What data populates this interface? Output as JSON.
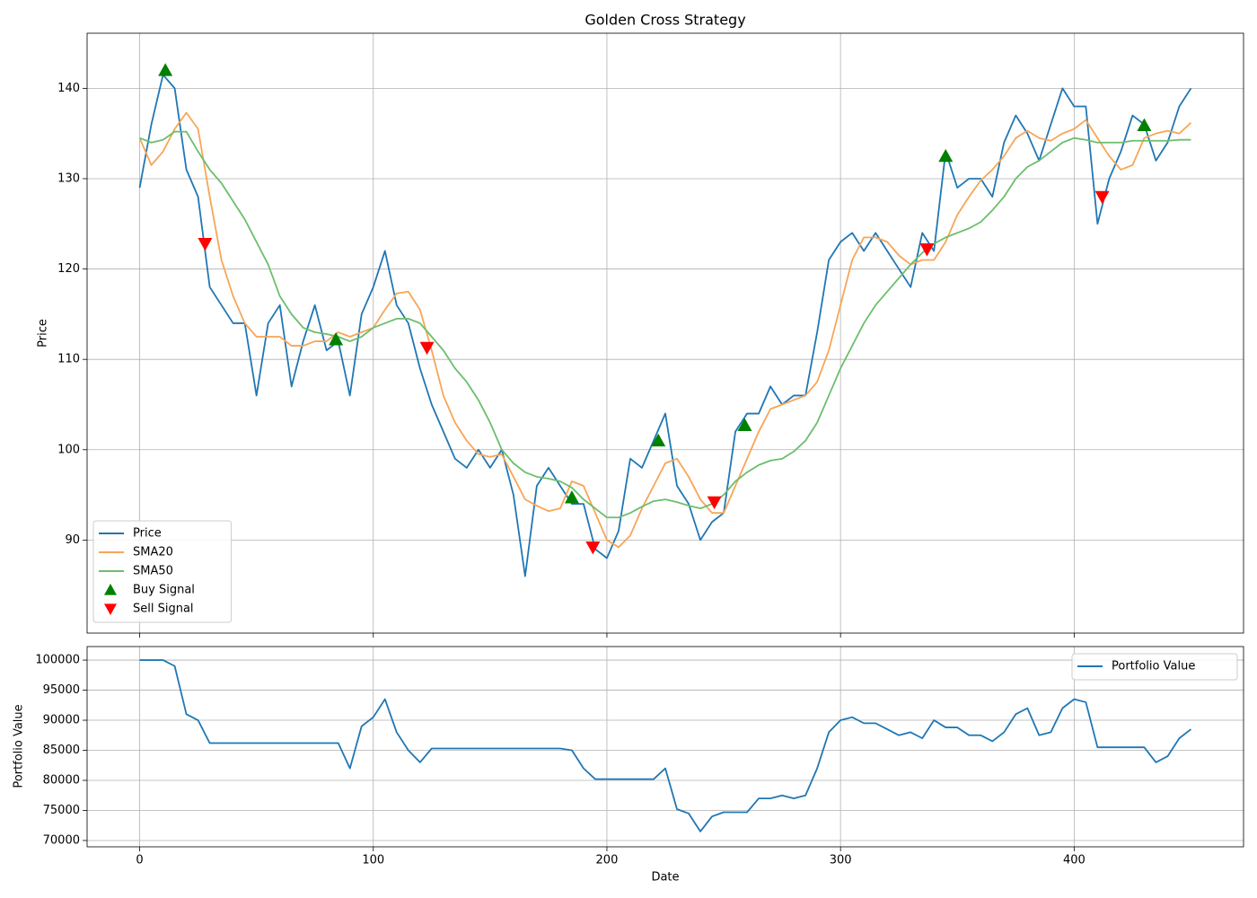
{
  "chart_data": [
    {
      "type": "line",
      "title": "Golden Cross Strategy",
      "ylabel": "Price",
      "xlim": [
        -22.5,
        472.5
      ],
      "ylim": [
        79.7,
        146.1
      ],
      "xticks": [
        0,
        100,
        200,
        300,
        400
      ],
      "yticks": [
        90,
        100,
        110,
        120,
        130,
        140
      ],
      "grid": true,
      "legend": "lower left",
      "x": [
        0,
        5,
        10,
        15,
        20,
        25,
        30,
        35,
        40,
        45,
        50,
        55,
        60,
        65,
        70,
        75,
        80,
        85,
        90,
        95,
        100,
        105,
        110,
        115,
        120,
        125,
        130,
        135,
        140,
        145,
        150,
        155,
        160,
        165,
        170,
        175,
        180,
        185,
        190,
        195,
        200,
        205,
        210,
        215,
        220,
        225,
        230,
        235,
        240,
        245,
        250,
        255,
        260,
        265,
        270,
        275,
        280,
        285,
        290,
        295,
        300,
        305,
        310,
        315,
        320,
        325,
        330,
        335,
        340,
        345,
        350,
        355,
        360,
        365,
        370,
        375,
        380,
        385,
        390,
        395,
        400,
        405,
        410,
        415,
        420,
        425,
        430,
        435,
        440,
        445,
        450
      ],
      "series": [
        {
          "name": "Price",
          "color": "#1f77b4",
          "values": [
            129,
            136,
            141.5,
            140,
            131,
            128,
            118,
            116,
            114,
            114,
            106,
            114,
            116,
            107,
            112,
            116,
            111,
            112,
            106,
            115,
            118,
            122,
            116,
            114,
            109,
            105,
            102,
            99,
            98,
            100,
            98,
            100,
            95,
            86,
            96,
            98,
            96,
            94,
            94,
            89,
            88,
            91,
            99,
            98,
            101,
            104,
            96,
            94,
            90,
            92,
            93,
            102,
            104,
            104,
            107,
            105,
            106,
            106,
            113,
            121,
            123,
            124,
            122,
            124,
            122,
            120,
            118,
            124,
            122,
            133,
            129,
            130,
            130,
            128,
            134,
            137,
            135,
            132,
            136,
            140,
            138,
            138,
            125,
            130,
            133,
            137,
            136,
            132,
            134,
            138,
            140
          ]
        },
        {
          "name": "SMA20",
          "color": "#f8a556",
          "values": [
            134.5,
            131.5,
            133,
            135.5,
            137.3,
            135.5,
            128,
            121,
            117,
            114,
            112.5,
            112.5,
            112.5,
            111.5,
            111.5,
            112,
            112,
            113,
            112.5,
            113,
            113.5,
            115.5,
            117.3,
            117.5,
            115.5,
            111,
            106,
            103,
            101,
            99.5,
            99.2,
            99.5,
            97,
            94.5,
            93.8,
            93.2,
            93.5,
            96.5,
            96,
            93,
            90,
            89.2,
            90.5,
            93.5,
            96,
            98.5,
            99,
            97,
            94.5,
            93,
            93,
            96,
            99,
            102,
            104.5,
            105,
            105.5,
            106,
            107.5,
            111,
            116,
            121,
            123.5,
            123.5,
            123,
            121.5,
            120.5,
            121,
            121,
            123,
            126,
            128,
            129.8,
            131,
            132.5,
            134.5,
            135.3,
            134.5,
            134.2,
            135,
            135.5,
            136.5,
            134.5,
            132.5,
            131,
            131.5,
            134.5,
            135,
            135.3,
            135,
            136.2
          ]
        },
        {
          "name": "SMA50",
          "color": "#6cbe6c",
          "values": [
            134.5,
            134,
            134.3,
            135.2,
            135.2,
            133,
            131,
            129.5,
            127.5,
            125.5,
            123,
            120.5,
            117,
            115,
            113.5,
            113,
            112.8,
            112.5,
            112,
            112.5,
            113.5,
            114,
            114.5,
            114.5,
            114,
            112.5,
            111,
            109,
            107.5,
            105.5,
            103,
            100,
            98.5,
            97.5,
            97,
            96.8,
            96.5,
            95.8,
            94.5,
            93.5,
            92.5,
            92.5,
            93,
            93.7,
            94.3,
            94.5,
            94.2,
            93.8,
            93.5,
            94,
            95,
            96.5,
            97.5,
            98.3,
            98.8,
            99,
            99.8,
            101,
            103,
            106,
            109,
            111.5,
            114,
            116,
            117.5,
            119,
            120.5,
            121.8,
            122.8,
            123.5,
            124,
            124.5,
            125.2,
            126.5,
            128,
            130,
            131.3,
            132,
            133,
            134,
            134.5,
            134.3,
            134,
            134,
            134,
            134.2,
            134.2,
            134.2,
            134.2,
            134.3,
            134.3
          ]
        },
        {
          "name": "Buy Signal",
          "color": "green",
          "marker": "^",
          "x": [
            11,
            84,
            185,
            222,
            259,
            345,
            430
          ],
          "values": [
            142,
            112.2,
            94.7,
            101,
            102.7,
            132.5,
            135.9
          ]
        },
        {
          "name": "Sell Signal",
          "color": "red",
          "marker": "v",
          "x": [
            28,
            123,
            194,
            246,
            337,
            412
          ],
          "values": [
            122.8,
            111.3,
            89.2,
            94.2,
            122.2,
            128
          ]
        }
      ]
    },
    {
      "type": "line",
      "xlabel": "Date",
      "ylabel": "Portfolio Value",
      "xlim": [
        -22.5,
        472.5
      ],
      "ylim": [
        68950,
        102250
      ],
      "xticks": [
        0,
        100,
        200,
        300,
        400
      ],
      "yticks": [
        70000,
        75000,
        80000,
        85000,
        90000,
        95000,
        100000
      ],
      "grid": true,
      "legend": "upper right",
      "x": [
        0,
        5,
        10,
        15,
        20,
        25,
        30,
        35,
        40,
        45,
        50,
        55,
        60,
        65,
        70,
        75,
        80,
        85,
        90,
        95,
        100,
        105,
        110,
        115,
        120,
        125,
        130,
        135,
        140,
        145,
        150,
        155,
        160,
        165,
        170,
        175,
        180,
        185,
        190,
        195,
        200,
        205,
        210,
        215,
        220,
        225,
        230,
        235,
        240,
        245,
        250,
        255,
        260,
        265,
        270,
        275,
        280,
        285,
        290,
        295,
        300,
        305,
        310,
        315,
        320,
        325,
        330,
        335,
        340,
        345,
        350,
        355,
        360,
        365,
        370,
        375,
        380,
        385,
        390,
        395,
        400,
        405,
        410,
        415,
        420,
        425,
        430,
        435,
        440,
        445,
        450
      ],
      "series": [
        {
          "name": "Portfolio Value",
          "color": "#1f77b4",
          "values": [
            100000,
            100000,
            100000,
            99000,
            91000,
            90000,
            86200,
            86200,
            86200,
            86200,
            86200,
            86200,
            86200,
            86200,
            86200,
            86200,
            86200,
            86200,
            82000,
            89000,
            90500,
            93500,
            88000,
            85000,
            83000,
            85300,
            85300,
            85300,
            85300,
            85300,
            85300,
            85300,
            85300,
            85300,
            85300,
            85300,
            85300,
            85000,
            82000,
            80200,
            80200,
            80200,
            80200,
            80200,
            80200,
            82000,
            75200,
            74500,
            71500,
            74000,
            74700,
            74700,
            74700,
            77000,
            77000,
            77500,
            77000,
            77500,
            82000,
            88000,
            90000,
            90500,
            89500,
            89500,
            88500,
            87500,
            88000,
            87000,
            90000,
            88800,
            88800,
            87500,
            87500,
            86500,
            88000,
            91000,
            92000,
            87500,
            88000,
            92000,
            93500,
            93000,
            85500,
            85500,
            85500,
            85500,
            85500,
            83000,
            84000,
            87000,
            88500
          ]
        }
      ]
    }
  ]
}
